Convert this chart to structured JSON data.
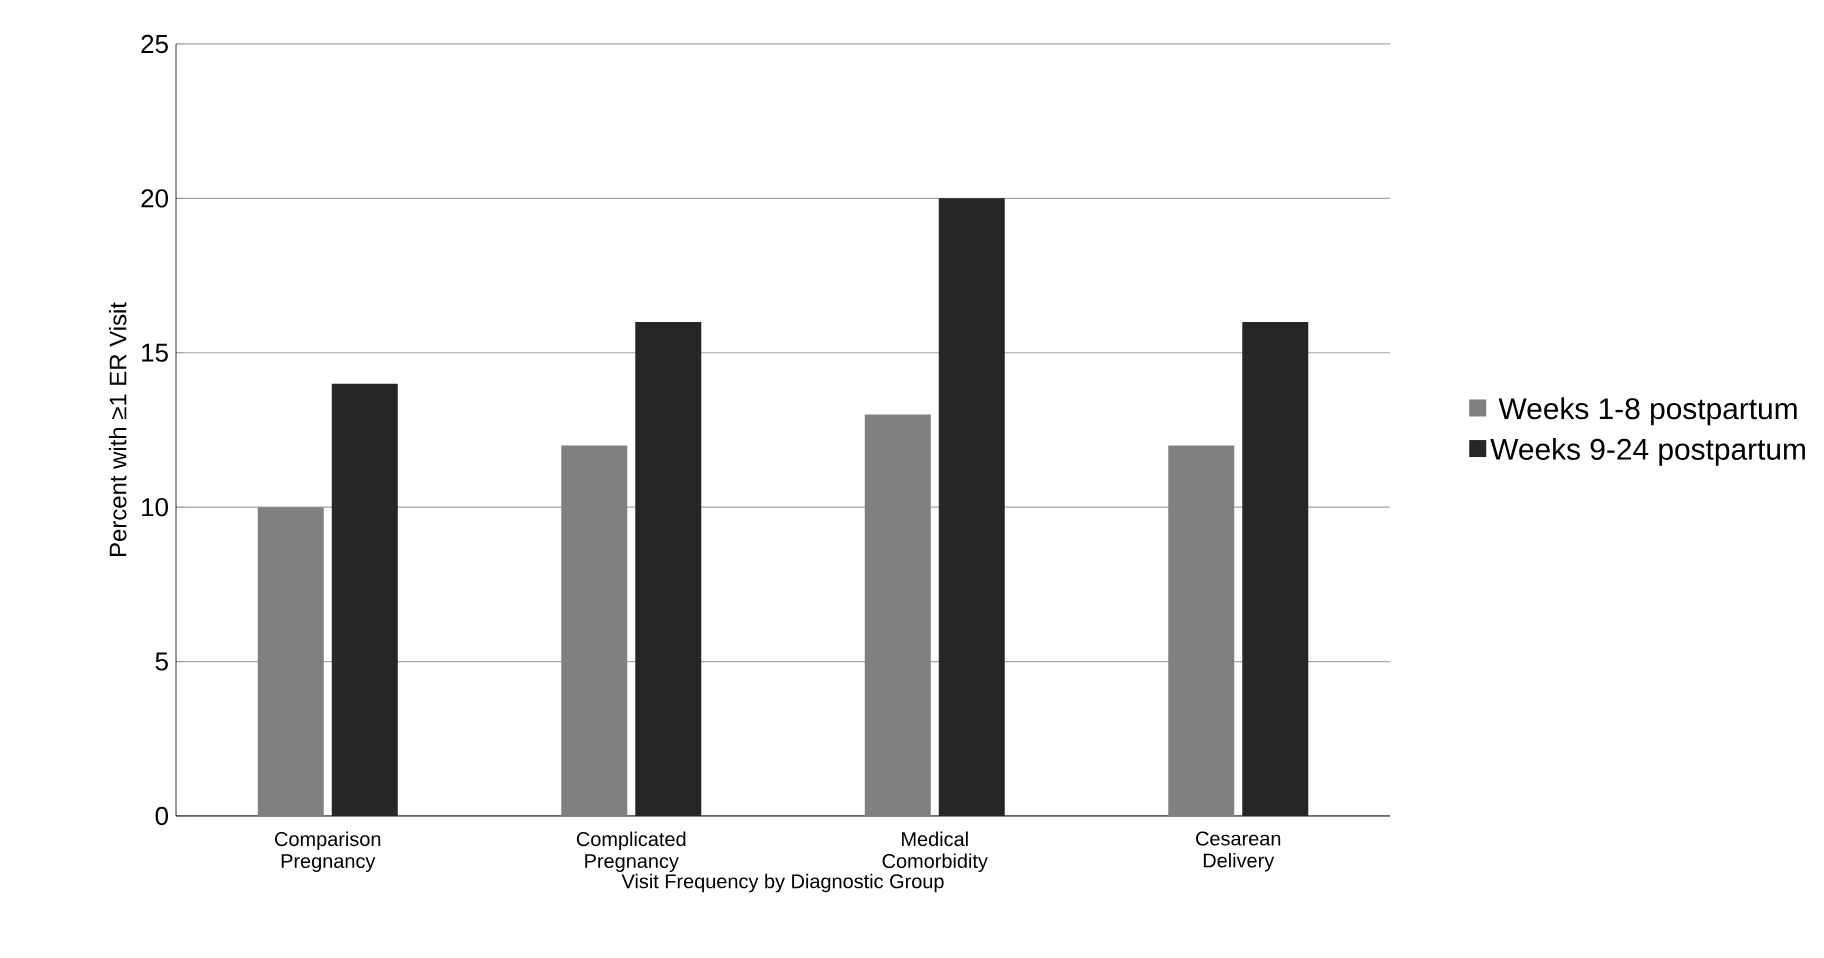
{
  "chart_data": {
    "type": "bar",
    "xlabel": "Visit Frequency by Diagnostic Group",
    "ylabel": "Percent with ≥1 ER Visit",
    "categories": [
      "Comparison Pregnancy",
      "Complicated Pregnancy",
      "Medical Comorbidity",
      "Cesarean Delivery"
    ],
    "series": [
      {
        "name": "Weeks 1-8 postpartum",
        "color": "#808080",
        "values": [
          10,
          12,
          13,
          12
        ]
      },
      {
        "name": "Weeks 9-24 postpartum",
        "color": "#262626",
        "values": [
          14,
          16,
          20,
          16
        ]
      }
    ],
    "ylim": [
      0,
      25
    ],
    "yticks": [
      0,
      5,
      10,
      15,
      20,
      25
    ],
    "grid": "y",
    "legend": "right"
  }
}
